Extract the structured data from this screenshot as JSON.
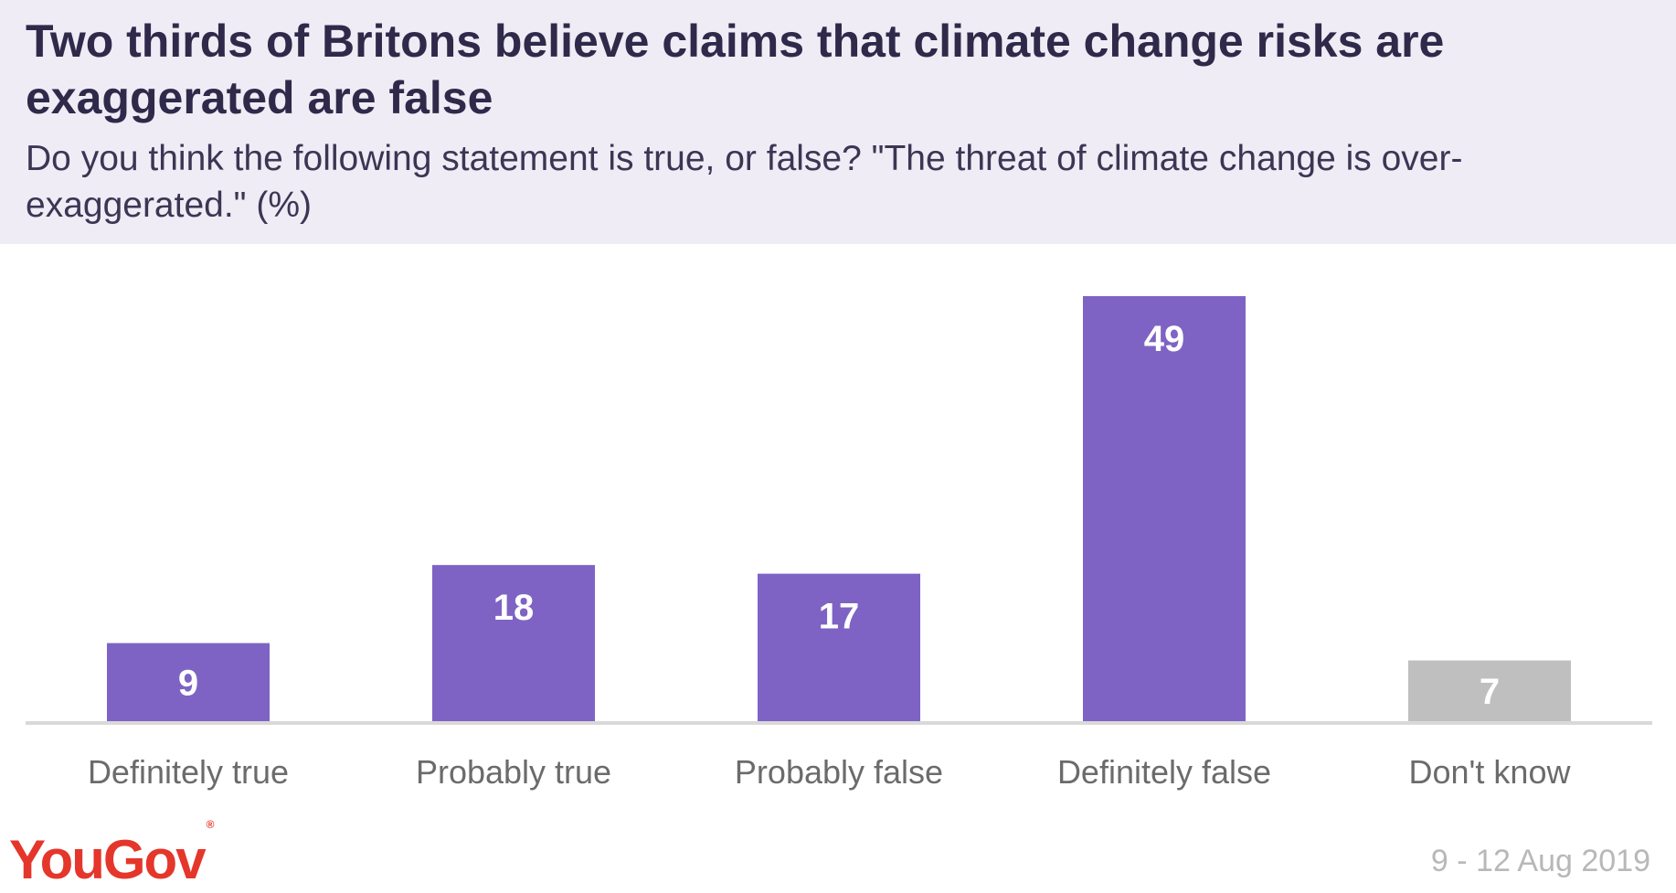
{
  "header": {
    "title": "Two thirds of Britons believe claims that climate change risks are exaggerated are false",
    "subtitle": "Do you think the following statement is true, or false? \"The threat of climate change is over-exaggerated.\" (%)"
  },
  "footer": {
    "logo": "YouGov",
    "date": "9 - 12 Aug 2019"
  },
  "colors": {
    "header_bg": "#efecf5",
    "bar_primary": "#7e63c4",
    "bar_neutral": "#bfbfbf",
    "baseline": "#d9d9d9",
    "category_label": "#6b6b6b",
    "logo": "#e5362b"
  },
  "chart_data": {
    "type": "bar",
    "categories": [
      "Definitely true",
      "Probably true",
      "Probably false",
      "Definitely false",
      "Don't know"
    ],
    "values": [
      9,
      18,
      17,
      49,
      7
    ],
    "bar_colors": [
      "#7e63c4",
      "#7e63c4",
      "#7e63c4",
      "#7e63c4",
      "#bfbfbf"
    ],
    "data_labels": [
      "9",
      "18",
      "17",
      "49",
      "7"
    ],
    "ylim": [
      0,
      55
    ],
    "grid": false,
    "legend": "none"
  }
}
